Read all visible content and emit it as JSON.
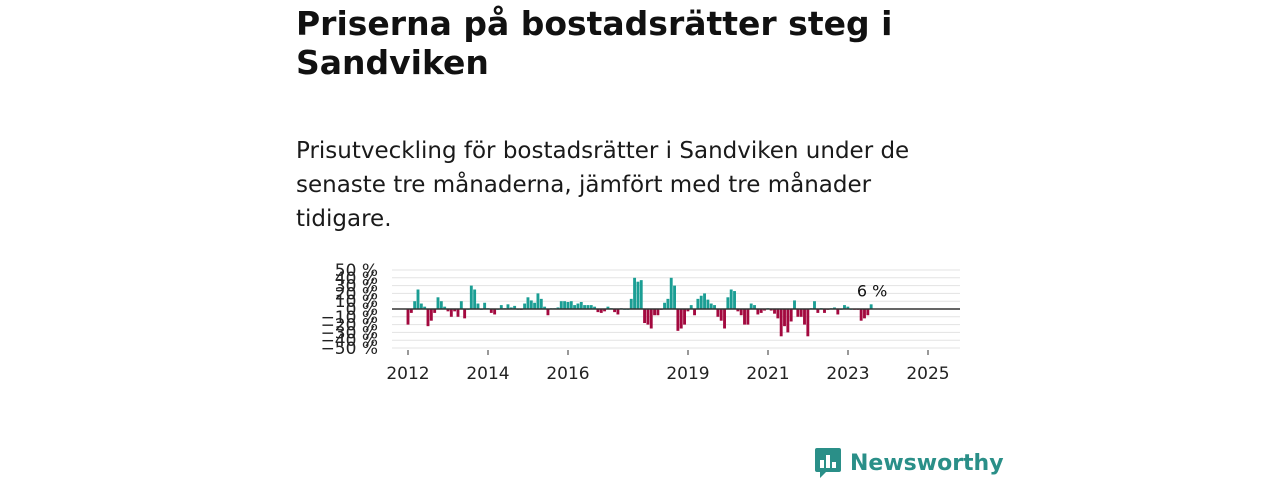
{
  "title": "Priserna på bostadsrätter steg i Sandviken",
  "subtitle": "Prisutveckling för bostadsrätter i Sandviken under de senaste tre månaderna, jämfört med tre månader tidigare.",
  "brand": {
    "name": "Newsworthy",
    "logo_icon": "newsworthy-bar-chart-icon"
  },
  "colors": {
    "positive": "#1b9e94",
    "negative": "#a3093f",
    "gridline": "#e3e3e3",
    "zero_line": "#333333",
    "brand": "#2a8f88"
  },
  "chart_data": {
    "type": "bar",
    "ylim": [
      -50,
      50
    ],
    "y_ticks": [
      50,
      40,
      30,
      20,
      10,
      0,
      -10,
      -20,
      -30,
      -40,
      -50
    ],
    "y_tick_labels": [
      "50 %",
      "40 %",
      "30 %",
      "20 %",
      "10 %",
      "0 %",
      "−10 %",
      "−20 %",
      "−30 %",
      "−40 %",
      "−50 %"
    ],
    "x_tick_labels": [
      "2012",
      "2014",
      "2016",
      "2019",
      "2021",
      "2023",
      "2025"
    ],
    "x_tick_values": [
      2012,
      2014,
      2016,
      2019,
      2021,
      2023,
      2025
    ],
    "x_range": [
      2011.6,
      2025.8
    ],
    "x_step": 0.0833,
    "last_label": "6 %",
    "values": [
      -20,
      -5,
      10,
      25,
      7,
      3,
      -22,
      -15,
      -5,
      15,
      10,
      3,
      -3,
      -10,
      -3,
      -10,
      10,
      -12,
      0,
      30,
      25,
      7,
      0,
      8,
      1,
      -5,
      -7,
      0,
      5,
      1,
      6,
      2,
      4,
      0,
      -1,
      7,
      15,
      11,
      8,
      20,
      13,
      3,
      -8,
      1,
      1,
      2,
      10,
      10,
      9,
      10,
      5,
      7,
      9,
      5,
      5,
      5,
      3,
      -4,
      -5,
      -3,
      3,
      1,
      -4,
      -7,
      1,
      0,
      0,
      13,
      40,
      35,
      37,
      -18,
      -20,
      -25,
      -8,
      -8,
      -1,
      8,
      13,
      40,
      30,
      -28,
      -25,
      -20,
      -3,
      5,
      -8,
      13,
      17,
      20,
      12,
      7,
      5,
      -10,
      -15,
      -25,
      15,
      25,
      23,
      -3,
      -8,
      -20,
      -20,
      7,
      5,
      -7,
      -5,
      -2,
      1,
      -2,
      -6,
      -12,
      -35,
      -22,
      -30,
      -16,
      11,
      -10,
      -10,
      -20,
      -35,
      1,
      10,
      -5,
      1,
      -5,
      -1,
      1,
      2,
      -7,
      0,
      5,
      3,
      0,
      -1,
      -1,
      -15,
      -12,
      -8,
      6
    ]
  }
}
